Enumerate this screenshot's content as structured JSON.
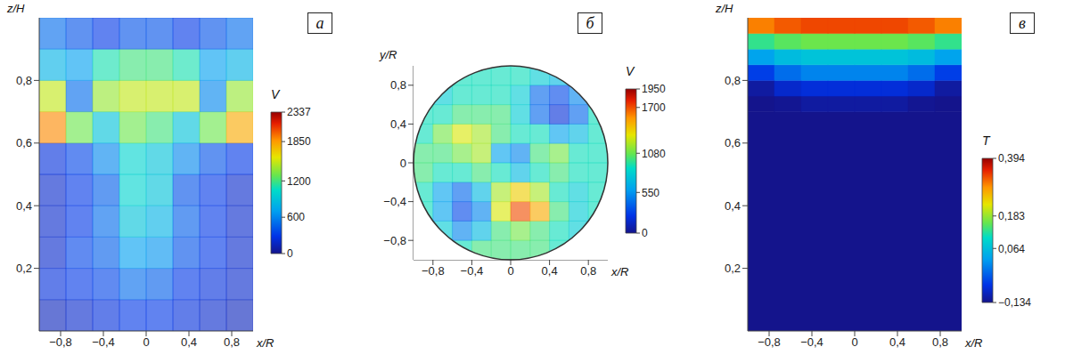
{
  "chart_data": [
    {
      "type": "heatmap",
      "panel_label": "а",
      "xlabel": "x/R",
      "ylabel": "z/H",
      "xlim": [
        -1,
        1
      ],
      "ylim": [
        0,
        1
      ],
      "xticks": [
        {
          "value": -0.8,
          "label": "−0,8"
        },
        {
          "value": -0.4,
          "label": "−0,4"
        },
        0,
        {
          "value": 0.4,
          "label": "0,4"
        },
        {
          "value": 0.8,
          "label": "0,8"
        }
      ],
      "yticks": [
        {
          "value": 0.2,
          "label": "0,2"
        },
        {
          "value": 0.4,
          "label": "0,4"
        },
        {
          "value": 0.6,
          "label": "0,6"
        },
        {
          "value": 0.8,
          "label": "0,8"
        }
      ],
      "x_edges": [
        -1,
        -0.75,
        -0.5,
        -0.25,
        0,
        0.25,
        0.5,
        0.75,
        1
      ],
      "y_edges": [
        0,
        0.1,
        0.2,
        0.3,
        0.4,
        0.5,
        0.6,
        0.7,
        0.8,
        0.9,
        1
      ],
      "cells": [
        [
          150,
          200,
          250,
          300,
          300,
          250,
          200,
          150
        ],
        [
          250,
          300,
          350,
          500,
          450,
          300,
          250,
          200
        ],
        [
          200,
          350,
          450,
          700,
          650,
          400,
          300,
          200
        ],
        [
          200,
          300,
          500,
          900,
          800,
          450,
          300,
          200
        ],
        [
          200,
          300,
          450,
          1000,
          900,
          400,
          300,
          200
        ],
        [
          250,
          350,
          600,
          1000,
          900,
          600,
          400,
          300
        ],
        [
          1900,
          1300,
          900,
          1300,
          1200,
          900,
          1300,
          1800
        ],
        [
          1500,
          500,
          1400,
          1500,
          1500,
          1500,
          600,
          1400
        ],
        [
          800,
          700,
          1100,
          1200,
          1200,
          1100,
          700,
          800
        ],
        [
          500,
          400,
          300,
          400,
          400,
          300,
          400,
          500
        ]
      ],
      "colorbar": {
        "label": "V",
        "range": [
          0,
          2337
        ],
        "ticks": [
          0,
          600,
          1200,
          1850,
          2337
        ]
      }
    },
    {
      "type": "disk",
      "panel_label": "б",
      "xlabel": "x/R",
      "ylabel": "y/R",
      "xlim": [
        -1,
        1
      ],
      "ylim": [
        -1,
        1
      ],
      "xticks": [
        {
          "value": -0.8,
          "label": "−0,8"
        },
        {
          "value": -0.4,
          "label": "−0,4"
        },
        0,
        {
          "value": 0.4,
          "label": "0,4"
        },
        {
          "value": 0.8,
          "label": "0,8"
        }
      ],
      "yticks": [
        {
          "value": -0.8,
          "label": "−0,8"
        },
        {
          "value": -0.4,
          "label": "−0,4"
        },
        0,
        {
          "value": 0.4,
          "label": "0,4"
        },
        {
          "value": 0.8,
          "label": "0,8"
        }
      ],
      "x_edges": [
        -1,
        -0.8,
        -0.6,
        -0.4,
        -0.2,
        0,
        0.2,
        0.4,
        0.6,
        0.8,
        1
      ],
      "y_edges": [
        -1,
        -0.8,
        -0.6,
        -0.4,
        -0.2,
        0,
        0.2,
        0.4,
        0.6,
        0.8,
        1
      ],
      "cells": [
        [
          null,
          null,
          900,
          1000,
          1000,
          1000,
          1000,
          900,
          null,
          null
        ],
        [
          null,
          800,
          500,
          700,
          1000,
          1100,
          1000,
          900,
          800,
          null
        ],
        [
          900,
          600,
          300,
          500,
          1300,
          1700,
          1500,
          1000,
          800,
          900
        ],
        [
          900,
          600,
          400,
          700,
          1200,
          1400,
          1200,
          900,
          800,
          900
        ],
        [
          1000,
          900,
          900,
          1000,
          900,
          700,
          900,
          1000,
          900,
          900
        ],
        [
          1000,
          1000,
          1100,
          1200,
          600,
          500,
          1000,
          1100,
          900,
          900
        ],
        [
          900,
          1100,
          1300,
          1200,
          1000,
          900,
          900,
          600,
          700,
          900
        ],
        [
          900,
          900,
          1000,
          1000,
          1000,
          800,
          400,
          200,
          400,
          900
        ],
        [
          null,
          800,
          900,
          900,
          900,
          800,
          400,
          300,
          500,
          null
        ],
        [
          null,
          null,
          900,
          900,
          900,
          900,
          800,
          700,
          null,
          null
        ]
      ],
      "colorbar": {
        "label": "V",
        "range": [
          0,
          1950
        ],
        "ticks": [
          0,
          550,
          1080,
          1700,
          1950
        ]
      }
    },
    {
      "type": "heatmap",
      "panel_label": "в",
      "xlabel": "x/R",
      "ylabel": "z/H",
      "xlim": [
        -1,
        1
      ],
      "ylim": [
        0,
        1
      ],
      "xticks": [
        {
          "value": -0.8,
          "label": "−0,8"
        },
        {
          "value": -0.4,
          "label": "−0,4"
        },
        0,
        {
          "value": 0.4,
          "label": "0,4"
        },
        {
          "value": 0.8,
          "label": "0,8"
        }
      ],
      "yticks": [
        {
          "value": 0.2,
          "label": "0,2"
        },
        {
          "value": 0.4,
          "label": "0,4"
        },
        {
          "value": 0.6,
          "label": "0,6"
        },
        {
          "value": 0.8,
          "label": "0,8"
        }
      ],
      "x_edges": [
        -1,
        -0.75,
        -0.5,
        -0.25,
        0,
        0.25,
        0.5,
        0.75,
        1
      ],
      "y_edges": [
        0,
        0.7,
        0.75,
        0.8,
        0.85,
        0.9,
        0.95,
        1
      ],
      "cells": [
        [
          -0.134,
          -0.134,
          -0.134,
          -0.134,
          -0.134,
          -0.134,
          -0.134,
          -0.134
        ],
        [
          -0.134,
          -0.13,
          -0.12,
          -0.12,
          -0.12,
          -0.12,
          -0.13,
          -0.134
        ],
        [
          -0.12,
          -0.09,
          -0.08,
          -0.08,
          -0.08,
          -0.08,
          -0.09,
          -0.12
        ],
        [
          -0.06,
          -0.02,
          0,
          0,
          0,
          0,
          -0.02,
          -0.06
        ],
        [
          0.03,
          0.06,
          0.07,
          0.07,
          0.07,
          0.07,
          0.06,
          0.03
        ],
        [
          0.13,
          0.15,
          0.16,
          0.16,
          0.16,
          0.16,
          0.15,
          0.13
        ],
        [
          0.3,
          0.32,
          0.33,
          0.33,
          0.33,
          0.33,
          0.32,
          0.3
        ]
      ],
      "colorbar": {
        "label": "T",
        "range": [
          -0.134,
          0.394
        ],
        "ticks": [
          {
            "value": -0.134,
            "label": "−0,134"
          },
          {
            "value": 0.064,
            "label": "0,064"
          },
          {
            "value": 0.183,
            "label": "0,183"
          },
          {
            "value": 0.394,
            "label": "0,394"
          }
        ]
      }
    }
  ]
}
